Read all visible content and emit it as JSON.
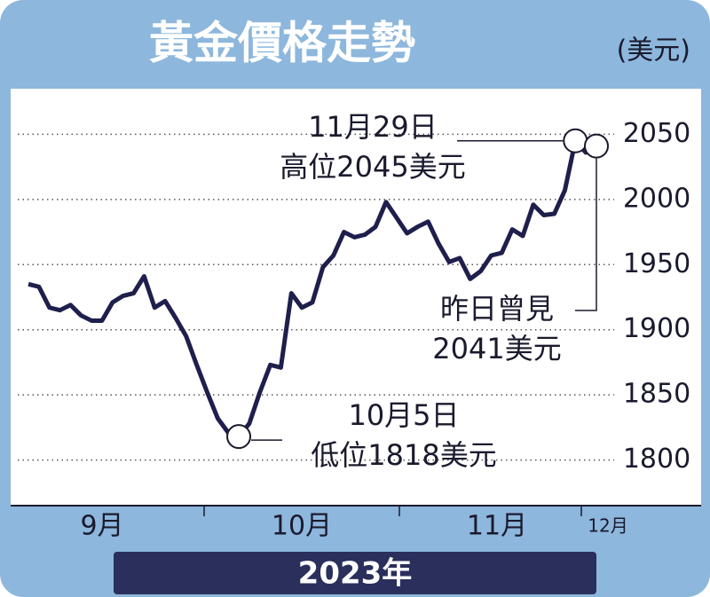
{
  "chart_data": {
    "type": "line",
    "title": "黃金價格走勢",
    "unit": "(美元)",
    "categories": [
      null,
      null,
      null,
      null,
      null,
      null,
      null,
      null,
      null,
      null,
      null,
      null,
      null,
      null,
      null,
      null,
      null,
      null,
      null,
      null,
      null,
      null,
      null,
      null,
      null,
      null,
      null,
      null,
      null,
      null,
      null,
      null,
      null,
      null,
      null,
      null,
      null,
      null,
      null,
      null,
      null,
      null,
      null,
      null,
      null,
      null,
      null,
      null,
      null,
      null,
      null,
      null,
      null,
      null,
      null
    ],
    "series": [
      {
        "name": null,
        "color": "#1f1f4d",
        "values": [
          1935,
          1933,
          1917,
          1915,
          1919,
          1911,
          1907,
          1907,
          1921,
          1926,
          1928,
          1941,
          1917,
          1922,
          1909,
          1895,
          1873,
          1852,
          1832,
          1821,
          1818,
          1828,
          1852,
          1873,
          1871,
          1928,
          1917,
          1921,
          1948,
          1957,
          1975,
          1971,
          1973,
          1979,
          1998,
          1986,
          1974,
          1979,
          1983,
          1966,
          1952,
          1955,
          1939,
          1945,
          1957,
          1959,
          1977,
          1972,
          1996,
          1988,
          1989,
          2007,
          2045,
          2036,
          2041
        ]
      }
    ],
    "ylim": [
      1765,
      2085
    ],
    "yticks": [
      1800,
      1850,
      1900,
      1950,
      2000,
      2050
    ],
    "grid": true,
    "x_axis_labels": [
      "9月",
      "10月",
      "11月",
      "12月"
    ],
    "year_label": "2023年",
    "annotations": [
      {
        "lines": [
          "11月29日",
          "高位2045美元"
        ],
        "value": 2045
      },
      {
        "lines": [
          "10月5日",
          "低位1818美元"
        ],
        "value": 1818
      },
      {
        "lines": [
          "昨日曾見",
          "2041美元"
        ],
        "value": 2041
      }
    ]
  }
}
